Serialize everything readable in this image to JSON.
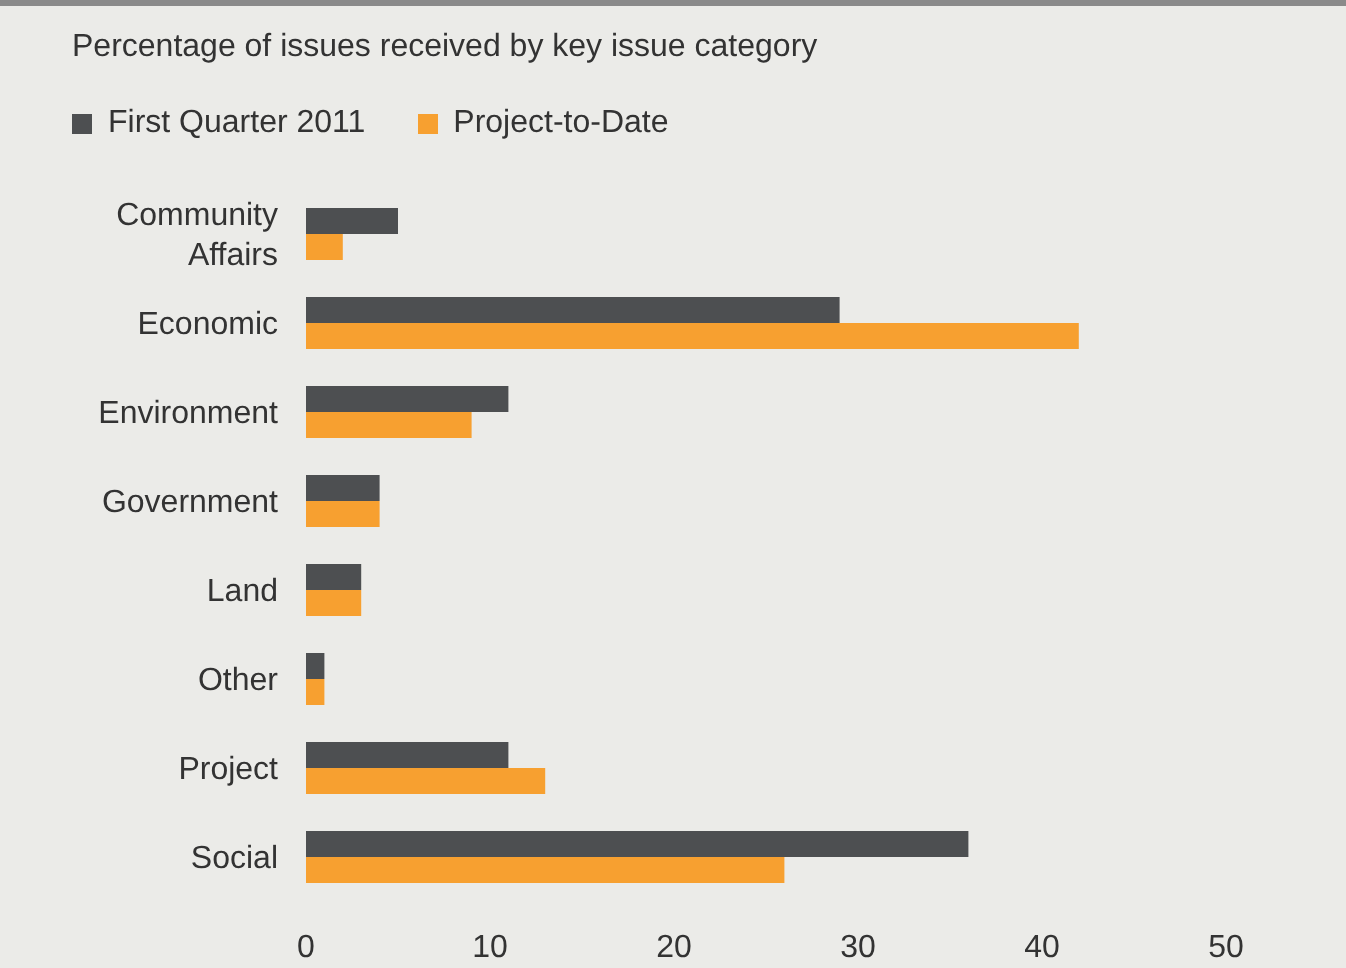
{
  "chart_data": {
    "type": "bar",
    "orientation": "horizontal",
    "title": "Percentage of issues received by key issue category",
    "categories": [
      "Community Affairs",
      "Economic",
      "Environment",
      "Government",
      "Land",
      "Other",
      "Project",
      "Social"
    ],
    "series": [
      {
        "name": "First Quarter 2011",
        "color": "#4d4f51",
        "values": [
          5,
          29,
          11,
          4,
          3,
          1,
          11,
          36
        ]
      },
      {
        "name": "Project-to-Date",
        "color": "#f7a030",
        "values": [
          2,
          42,
          9,
          4,
          3,
          1,
          13,
          26
        ]
      }
    ],
    "xlim": [
      0,
      50
    ],
    "xticks": [
      0,
      10,
      20,
      30,
      40,
      50
    ],
    "legend": "top left"
  }
}
